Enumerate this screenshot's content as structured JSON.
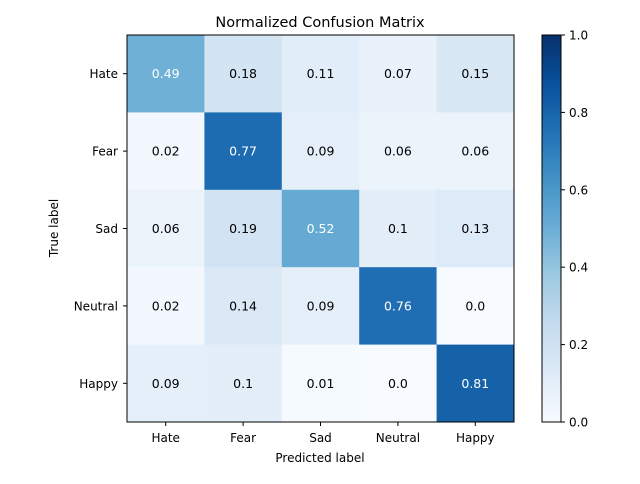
{
  "chart_data": {
    "type": "heatmap",
    "title": "Normalized Confusion Matrix",
    "xlabel": "Predicted label",
    "ylabel": "True label",
    "x_categories": [
      "Hate",
      "Fear",
      "Sad",
      "Neutral",
      "Happy"
    ],
    "y_categories": [
      "Hate",
      "Fear",
      "Sad",
      "Neutral",
      "Happy"
    ],
    "values": [
      [
        0.49,
        0.18,
        0.11,
        0.07,
        0.15
      ],
      [
        0.02,
        0.77,
        0.09,
        0.06,
        0.06
      ],
      [
        0.06,
        0.19,
        0.52,
        0.1,
        0.13
      ],
      [
        0.02,
        0.14,
        0.09,
        0.76,
        0.0
      ],
      [
        0.09,
        0.1,
        0.01,
        0.0,
        0.81
      ]
    ],
    "cell_labels": [
      [
        "0.49",
        "0.18",
        "0.11",
        "0.07",
        "0.15"
      ],
      [
        "0.02",
        "0.77",
        "0.09",
        "0.06",
        "0.06"
      ],
      [
        "0.06",
        "0.19",
        "0.52",
        "0.1",
        "0.13"
      ],
      [
        "0.02",
        "0.14",
        "0.09",
        "0.76",
        "0.0"
      ],
      [
        "0.09",
        "0.1",
        "0.01",
        "0.0",
        "0.81"
      ]
    ],
    "colormap": "Blues",
    "color_range": [
      0,
      1
    ],
    "colorbar": {
      "ticks": [
        0.0,
        0.2,
        0.4,
        0.6,
        0.8,
        1.0
      ],
      "tick_labels": [
        "0.0",
        "0.2",
        "0.4",
        "0.6",
        "0.8",
        "1.0"
      ],
      "placement": "right"
    },
    "grid": false
  }
}
